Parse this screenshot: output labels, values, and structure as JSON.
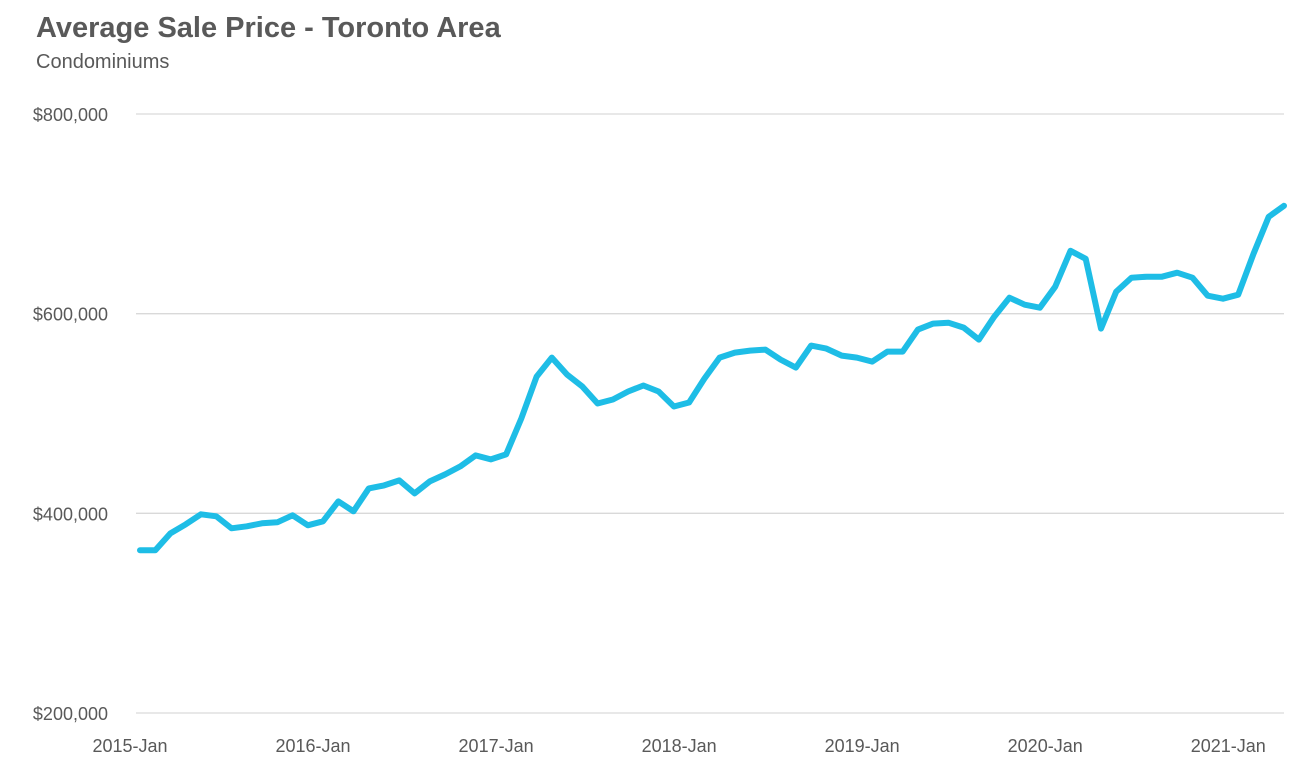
{
  "chart_data": {
    "type": "line",
    "title": "Average Sale Price - Toronto Area",
    "subtitle": "Condominiums",
    "xlabel": "",
    "ylabel": "",
    "ylim": [
      200000,
      800000
    ],
    "yticks": [
      200000,
      400000,
      600000,
      800000
    ],
    "ytick_labels": [
      "$200,000",
      "$400,000",
      "$600,000",
      "$800,000"
    ],
    "xticks": [
      0,
      12,
      24,
      36,
      48,
      60,
      72
    ],
    "xtick_labels": [
      "2015-Jan",
      "2016-Jan",
      "2017-Jan",
      "2018-Jan",
      "2019-Jan",
      "2020-Jan",
      "2021-Jan"
    ],
    "x": [
      "2015-Jan",
      "2015-Feb",
      "2015-Mar",
      "2015-Apr",
      "2015-May",
      "2015-Jun",
      "2015-Jul",
      "2015-Aug",
      "2015-Sep",
      "2015-Oct",
      "2015-Nov",
      "2015-Dec",
      "2016-Jan",
      "2016-Feb",
      "2016-Mar",
      "2016-Apr",
      "2016-May",
      "2016-Jun",
      "2016-Jul",
      "2016-Aug",
      "2016-Sep",
      "2016-Oct",
      "2016-Nov",
      "2016-Dec",
      "2017-Jan",
      "2017-Feb",
      "2017-Mar",
      "2017-Apr",
      "2017-May",
      "2017-Jun",
      "2017-Jul",
      "2017-Aug",
      "2017-Sep",
      "2017-Oct",
      "2017-Nov",
      "2017-Dec",
      "2018-Jan",
      "2018-Feb",
      "2018-Mar",
      "2018-Apr",
      "2018-May",
      "2018-Jun",
      "2018-Jul",
      "2018-Aug",
      "2018-Sep",
      "2018-Oct",
      "2018-Nov",
      "2018-Dec",
      "2019-Jan",
      "2019-Feb",
      "2019-Mar",
      "2019-Apr",
      "2019-May",
      "2019-Jun",
      "2019-Jul",
      "2019-Aug",
      "2019-Sep",
      "2019-Oct",
      "2019-Nov",
      "2019-Dec",
      "2020-Jan",
      "2020-Feb",
      "2020-Mar",
      "2020-Apr",
      "2020-May",
      "2020-Jun",
      "2020-Jul",
      "2020-Aug",
      "2020-Sep",
      "2020-Oct",
      "2020-Nov",
      "2020-Dec",
      "2021-Jan",
      "2021-Feb",
      "2021-Mar",
      "2021-Apr"
    ],
    "grid": true,
    "legend": "none",
    "series": [
      {
        "color": "#1ebde6",
        "values": [
          363000,
          363000,
          380000,
          389000,
          399000,
          397000,
          385000,
          387000,
          390000,
          391000,
          398000,
          388000,
          392000,
          412000,
          402000,
          425000,
          428000,
          433000,
          420000,
          432000,
          439000,
          447000,
          458000,
          454000,
          459000,
          495000,
          537000,
          556000,
          539000,
          527000,
          510000,
          514000,
          522000,
          528000,
          522000,
          507000,
          511000,
          535000,
          556000,
          561000,
          563000,
          564000,
          554000,
          546000,
          568000,
          565000,
          558000,
          556000,
          552000,
          562000,
          562000,
          584000,
          590000,
          591000,
          586000,
          574000,
          597000,
          616000,
          609000,
          606000,
          627000,
          663000,
          655000,
          585000,
          622000,
          636000,
          637000,
          637000,
          641000,
          636000,
          618000,
          615000,
          619000,
          660000,
          697000,
          708000
        ]
      }
    ]
  }
}
